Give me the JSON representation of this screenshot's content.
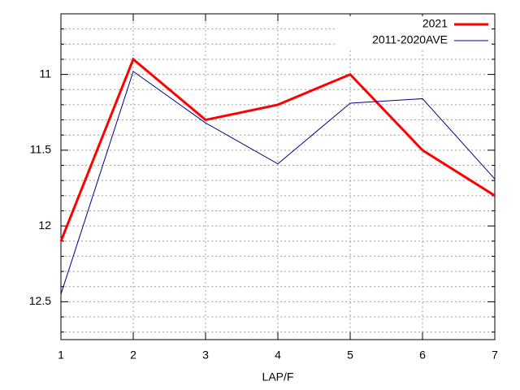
{
  "chart_data": {
    "type": "line",
    "x_label": "LAP/F",
    "x": [
      1,
      2,
      3,
      4,
      5,
      6,
      7
    ],
    "series": [
      {
        "name": "2021",
        "color": "#ff0000",
        "width": 3,
        "values": [
          12.1,
          10.9,
          11.3,
          11.2,
          11.0,
          11.5,
          11.8
        ]
      },
      {
        "name": "2011-2020AVE",
        "color": "#00008b",
        "width": 1,
        "values": [
          12.45,
          10.98,
          11.32,
          11.59,
          11.19,
          11.16,
          11.69
        ]
      }
    ],
    "xlim": [
      1,
      7
    ],
    "xticks": [
      1,
      2,
      3,
      4,
      5,
      6,
      7
    ],
    "ylim": [
      10.6,
      12.75
    ],
    "y_inverted": true,
    "yticks": [
      11,
      11.5,
      12,
      12.5
    ],
    "y_minor_ticks": 5,
    "grid": true,
    "legend": "top-right"
  }
}
